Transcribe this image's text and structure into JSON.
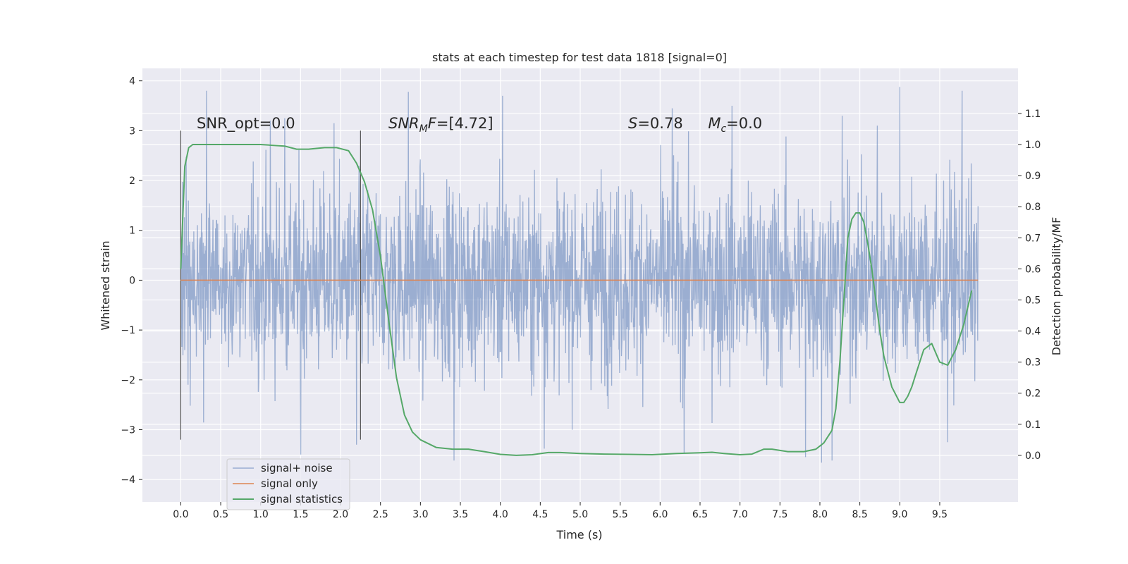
{
  "chart_data": {
    "type": "line",
    "title": "stats at each timestep for test data 1818 [signal=0]",
    "xlabel": "Time (s)",
    "ylabel": "Whitened strain",
    "y2label": "Detection probability/MF",
    "xlim": [
      -0.48,
      10.48
    ],
    "ylim": [
      -4.45,
      4.25
    ],
    "y2lim": [
      -0.15,
      1.245
    ],
    "x_ticks": [
      "0.0",
      "0.5",
      "1.0",
      "1.5",
      "2.0",
      "2.5",
      "3.0",
      "3.5",
      "4.0",
      "4.5",
      "5.0",
      "5.5",
      "6.0",
      "6.5",
      "7.0",
      "7.5",
      "8.0",
      "8.5",
      "9.0",
      "9.5"
    ],
    "y_ticks": [
      "4",
      "3",
      "2",
      "1",
      "0",
      "−1",
      "−2",
      "−3",
      "−4"
    ],
    "y2_ticks": [
      "1.1",
      "1.0",
      "0.9",
      "0.8",
      "0.7",
      "0.6",
      "0.5",
      "0.4",
      "0.3",
      "0.2",
      "0.1",
      "0.0"
    ],
    "grid": true,
    "legend_position": "lower-left",
    "vlines": [
      {
        "x": 0.0,
        "ymin": -3.2,
        "ymax": 3.0
      },
      {
        "x": 2.25,
        "ymin": -3.2,
        "ymax": 3.0
      }
    ],
    "annotations": [
      {
        "x": 0.2,
        "y": 3.05,
        "parts": [
          {
            "t": "SNR_opt=0.0",
            "i": false
          }
        ]
      },
      {
        "x": 2.6,
        "y": 3.05,
        "parts": [
          {
            "t": "SNR",
            "i": true
          },
          {
            "t": "M",
            "i": true,
            "sub": true
          },
          {
            "t": "F",
            "i": true
          },
          {
            "t": "=[4.72]",
            "i": false
          }
        ]
      },
      {
        "x": 5.6,
        "y": 3.05,
        "parts": [
          {
            "t": "S",
            "i": true
          },
          {
            "t": "=0.78",
            "i": false
          }
        ]
      },
      {
        "x": 6.6,
        "y": 3.05,
        "parts": [
          {
            "t": "M",
            "i": true
          },
          {
            "t": "c",
            "i": true,
            "sub": true
          },
          {
            "t": "=0.0",
            "i": false
          }
        ]
      }
    ],
    "series": [
      {
        "name": "signal+ noise",
        "color": "#4c72b0",
        "opacity": 0.5,
        "axis": "left",
        "x_range": [
          0.0,
          9.98
        ],
        "noise_sigma": 0.95,
        "spike_peaks": [
          {
            "x": 0.32,
            "y": 3.8
          },
          {
            "x": 1.12,
            "y": 3.2
          },
          {
            "x": 1.3,
            "y": 3.25
          },
          {
            "x": 1.92,
            "y": 3.15
          },
          {
            "x": 2.85,
            "y": 3.78
          },
          {
            "x": 4.03,
            "y": 3.7
          },
          {
            "x": 6.15,
            "y": 3.45
          },
          {
            "x": 6.9,
            "y": 3.5
          },
          {
            "x": 8.28,
            "y": 3.3
          },
          {
            "x": 8.72,
            "y": 3.1
          },
          {
            "x": 9.0,
            "y": 3.88
          },
          {
            "x": 9.78,
            "y": 3.8
          }
        ],
        "spike_troughs": [
          {
            "x": 1.5,
            "y": -3.5
          },
          {
            "x": 2.2,
            "y": -3.3
          },
          {
            "x": 3.42,
            "y": -3.62
          },
          {
            "x": 4.55,
            "y": -3.38
          },
          {
            "x": 6.3,
            "y": -3.48
          },
          {
            "x": 7.82,
            "y": -3.55
          },
          {
            "x": 8.02,
            "y": -3.66
          },
          {
            "x": 8.15,
            "y": -3.62
          },
          {
            "x": 9.6,
            "y": -3.25
          }
        ]
      },
      {
        "name": "signal only",
        "color": "#dd8452",
        "axis": "left",
        "x": [
          0.0,
          9.98
        ],
        "y": [
          0.0,
          0.0
        ]
      },
      {
        "name": "signal statistics",
        "color": "#55a868",
        "axis": "right",
        "x": [
          0.0,
          0.05,
          0.1,
          0.15,
          0.2,
          0.3,
          0.5,
          0.8,
          1.0,
          1.3,
          1.45,
          1.6,
          1.8,
          1.95,
          2.1,
          2.2,
          2.3,
          2.4,
          2.5,
          2.6,
          2.7,
          2.8,
          2.9,
          3.0,
          3.2,
          3.4,
          3.6,
          3.8,
          4.0,
          4.2,
          4.4,
          4.6,
          4.75,
          5.0,
          5.3,
          5.6,
          5.9,
          6.2,
          6.5,
          6.65,
          6.8,
          7.0,
          7.15,
          7.3,
          7.4,
          7.6,
          7.8,
          7.95,
          8.05,
          8.15,
          8.2,
          8.25,
          8.3,
          8.35,
          8.4,
          8.45,
          8.5,
          8.55,
          8.6,
          8.65,
          8.7,
          8.75,
          8.8,
          8.9,
          9.0,
          9.05,
          9.1,
          9.15,
          9.2,
          9.3,
          9.4,
          9.5,
          9.6,
          9.7,
          9.8,
          9.9
        ],
        "y": [
          0.6,
          0.93,
          0.99,
          1.0,
          1.0,
          1.0,
          1.0,
          1.0,
          1.0,
          0.995,
          0.985,
          0.985,
          0.99,
          0.99,
          0.98,
          0.94,
          0.88,
          0.79,
          0.64,
          0.44,
          0.25,
          0.13,
          0.075,
          0.05,
          0.025,
          0.02,
          0.02,
          0.012,
          0.003,
          0.0,
          0.002,
          0.009,
          0.009,
          0.006,
          0.004,
          0.003,
          0.002,
          0.006,
          0.008,
          0.01,
          0.006,
          0.002,
          0.004,
          0.02,
          0.02,
          0.012,
          0.012,
          0.02,
          0.04,
          0.08,
          0.15,
          0.3,
          0.5,
          0.7,
          0.76,
          0.78,
          0.78,
          0.75,
          0.68,
          0.6,
          0.5,
          0.4,
          0.32,
          0.22,
          0.17,
          0.17,
          0.19,
          0.22,
          0.26,
          0.34,
          0.36,
          0.3,
          0.29,
          0.34,
          0.42,
          0.53
        ]
      }
    ]
  }
}
